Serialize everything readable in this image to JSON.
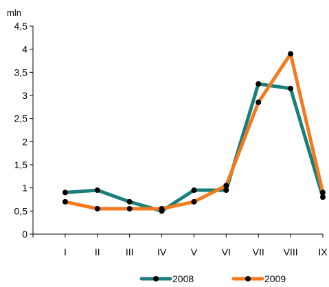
{
  "chart_data": {
    "type": "line",
    "unit_label": "mln",
    "categories": [
      "I",
      "II",
      "III",
      "IV",
      "V",
      "VI",
      "VII",
      "VIII",
      "IX"
    ],
    "ylim": [
      0,
      4.5
    ],
    "yticks": [
      "0",
      "0,5",
      "1",
      "1,5",
      "2",
      "2,5",
      "3",
      "3,5",
      "4",
      "4,5"
    ],
    "ytick_values": [
      0,
      0.5,
      1,
      1.5,
      2,
      2.5,
      3,
      3.5,
      4,
      4.5
    ],
    "grid": false,
    "legend_position": "bottom",
    "series": [
      {
        "name": "2008",
        "color": "#1a7f7a",
        "values": [
          0.9,
          0.95,
          0.7,
          0.5,
          0.95,
          0.95,
          3.25,
          3.15,
          0.8
        ]
      },
      {
        "name": "2009",
        "color": "#f27a1f",
        "values": [
          0.7,
          0.55,
          0.55,
          0.55,
          0.7,
          1.05,
          2.85,
          3.9,
          0.9
        ]
      }
    ]
  }
}
